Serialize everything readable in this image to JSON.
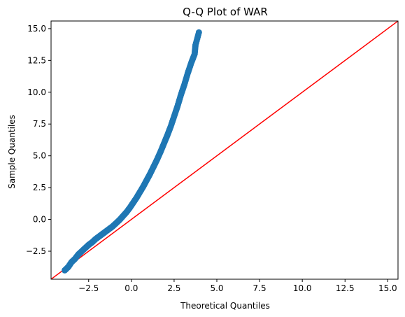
{
  "chart_data": {
    "type": "scatter",
    "title": "Q-Q Plot of WAR",
    "xlabel": "Theoretical Quantiles",
    "ylabel": "Sample Quantiles",
    "xlim": [
      -4.7,
      15.6
    ],
    "ylim": [
      -4.7,
      15.6
    ],
    "xticks": [
      -2.5,
      0.0,
      2.5,
      5.0,
      7.5,
      10.0,
      12.5,
      15.0
    ],
    "xtick_labels": [
      "−2.5",
      "0.0",
      "2.5",
      "5.0",
      "7.5",
      "10.0",
      "12.5",
      "15.0"
    ],
    "yticks": [
      -2.5,
      0.0,
      2.5,
      5.0,
      7.5,
      10.0,
      12.5,
      15.0
    ],
    "ytick_labels": [
      "−2.5",
      "0.0",
      "2.5",
      "5.0",
      "7.5",
      "10.0",
      "12.5",
      "15.0"
    ],
    "grid": false,
    "reference_line": {
      "slope": 1,
      "intercept": 0,
      "color": "#ff0000"
    },
    "series": [
      {
        "color": "#1f77b4",
        "x": [
          -3.9,
          -3.7,
          -3.5,
          -3.3,
          -3.1,
          -2.9,
          -2.7,
          -2.5,
          -2.3,
          -2.1,
          -1.9,
          -1.7,
          -1.5,
          -1.3,
          -1.1,
          -0.9,
          -0.7,
          -0.5,
          -0.3,
          -0.1,
          0.1,
          0.3,
          0.5,
          0.7,
          0.9,
          1.1,
          1.3,
          1.5,
          1.7,
          1.9,
          2.1,
          2.3,
          2.5,
          2.7,
          2.9,
          3.1,
          3.3,
          3.5,
          3.7,
          3.75,
          3.95
        ],
        "y": [
          -4.0,
          -3.75,
          -3.35,
          -3.1,
          -2.75,
          -2.5,
          -2.25,
          -2.0,
          -1.8,
          -1.55,
          -1.35,
          -1.15,
          -0.95,
          -0.75,
          -0.55,
          -0.3,
          -0.05,
          0.25,
          0.55,
          0.9,
          1.3,
          1.7,
          2.15,
          2.6,
          3.1,
          3.6,
          4.15,
          4.7,
          5.3,
          5.95,
          6.6,
          7.3,
          8.1,
          8.9,
          9.8,
          10.6,
          11.5,
          12.3,
          13.0,
          13.7,
          14.7
        ]
      }
    ]
  }
}
